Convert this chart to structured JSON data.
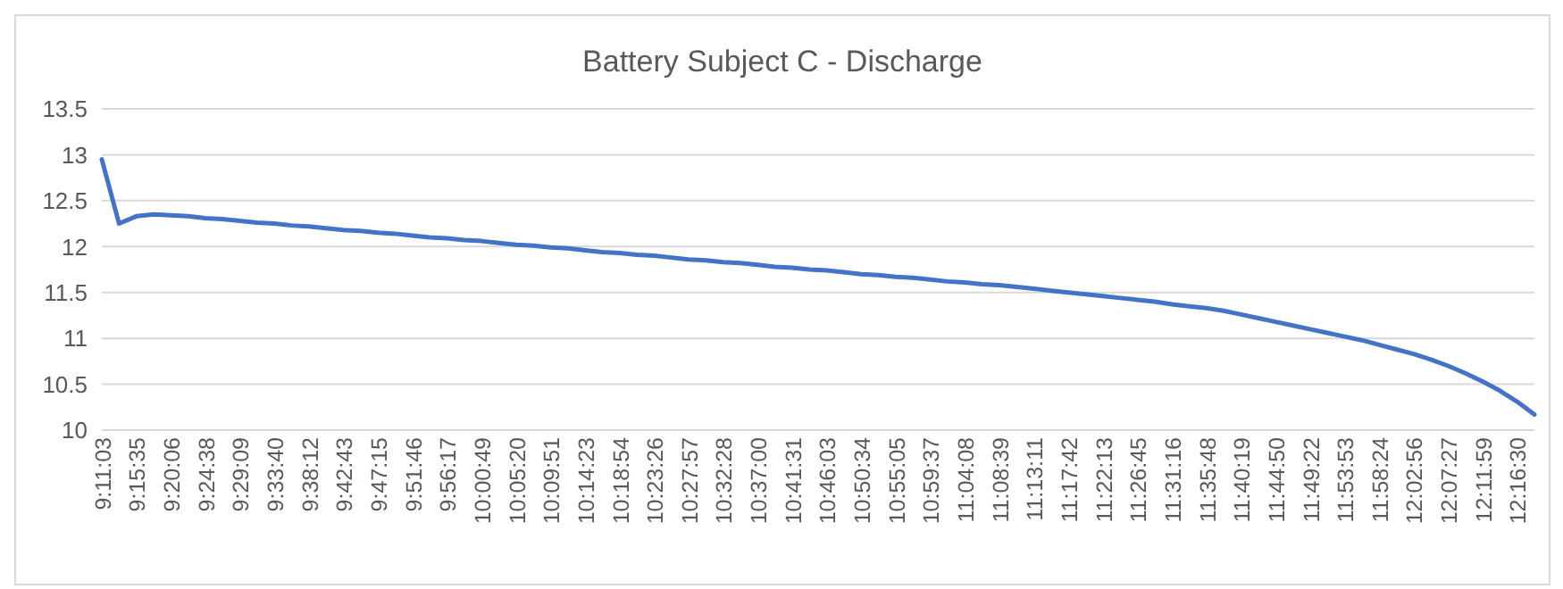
{
  "chart_data": {
    "type": "line",
    "title": "Battery Subject C - Discharge",
    "categories": [
      "9:11:03",
      null,
      "9:15:35",
      null,
      "9:20:06",
      null,
      "9:24:38",
      null,
      "9:29:09",
      null,
      "9:33:40",
      null,
      "9:38:12",
      null,
      "9:42:43",
      null,
      "9:47:15",
      null,
      "9:51:46",
      null,
      "9:56:17",
      null,
      "10:00:49",
      null,
      "10:05:20",
      null,
      "10:09:51",
      null,
      "10:14:23",
      null,
      "10:18:54",
      null,
      "10:23:26",
      null,
      "10:27:57",
      null,
      "10:32:28",
      null,
      "10:37:00",
      null,
      "10:41:31",
      null,
      "10:46:03",
      null,
      "10:50:34",
      null,
      "10:55:05",
      null,
      "10:59:37",
      null,
      "11:04:08",
      null,
      "11:08:39",
      null,
      "11:13:11",
      null,
      "11:17:42",
      null,
      "11:22:13",
      null,
      "11:26:45",
      null,
      "11:31:16",
      null,
      "11:35:48",
      null,
      "11:40:19",
      null,
      "11:44:50",
      null,
      "11:49:22",
      null,
      "11:53:53",
      null,
      "11:58:24",
      null,
      "12:02:56",
      null,
      "12:07:27",
      null,
      "12:11:59",
      null,
      "12:16:30",
      null
    ],
    "series": [
      {
        "color": "#4472c4",
        "values": [
          12.95,
          12.25,
          12.33,
          12.35,
          12.34,
          12.33,
          12.31,
          12.3,
          12.28,
          12.26,
          12.25,
          12.23,
          12.22,
          12.2,
          12.18,
          12.17,
          12.15,
          12.14,
          12.12,
          12.1,
          12.09,
          12.07,
          12.06,
          12.04,
          12.02,
          12.01,
          11.99,
          11.98,
          11.96,
          11.94,
          11.93,
          11.91,
          11.9,
          11.88,
          11.86,
          11.85,
          11.83,
          11.82,
          11.8,
          11.78,
          11.77,
          11.75,
          11.74,
          11.72,
          11.7,
          11.69,
          11.67,
          11.66,
          11.64,
          11.62,
          11.61,
          11.59,
          11.58,
          11.56,
          11.54,
          11.52,
          11.5,
          11.48,
          11.46,
          11.44,
          11.42,
          11.4,
          11.37,
          11.35,
          11.33,
          11.3,
          11.26,
          11.22,
          11.18,
          11.14,
          11.1,
          11.06,
          11.02,
          10.98,
          10.93,
          10.88,
          10.83,
          10.77,
          10.7,
          10.62,
          10.53,
          10.43,
          10.31,
          10.17
        ]
      }
    ],
    "ylim": [
      10,
      13.5
    ],
    "yticks": [
      10,
      10.5,
      11,
      11.5,
      12,
      12.5,
      13,
      13.5
    ],
    "grid": "y"
  }
}
